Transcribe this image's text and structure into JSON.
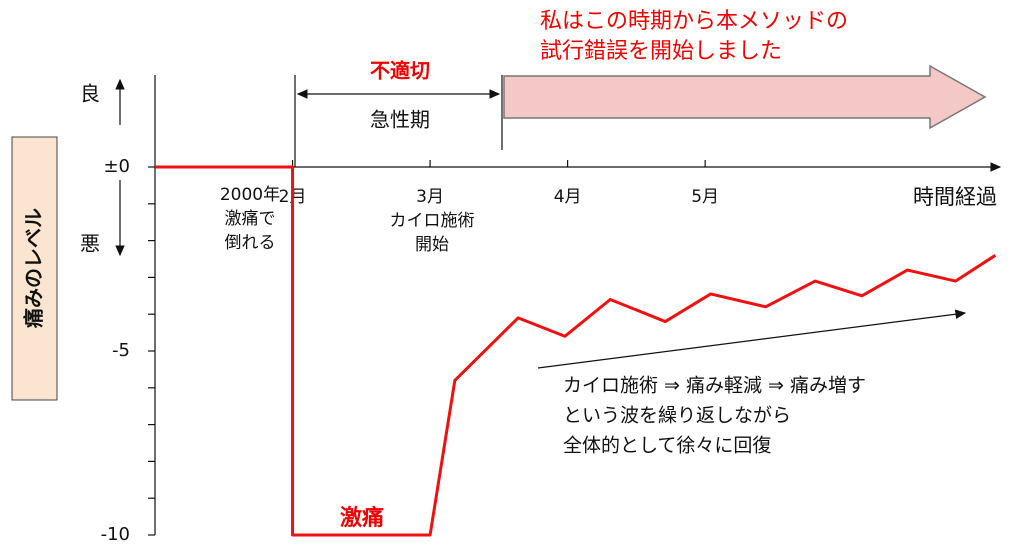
{
  "chart_data": {
    "type": "line",
    "x_label": "時間経過",
    "y_label": "痛みのレベル",
    "x": [
      1,
      2,
      2,
      3,
      3.18,
      3.64,
      3.98,
      4.31,
      4.71,
      5.04,
      5.44,
      5.8,
      6.14,
      6.47,
      6.82,
      7.11
    ],
    "series": [
      {
        "color": "#ee1111",
        "values": [
          0,
          0,
          -10,
          -10,
          -5.8,
          -4.1,
          -4.6,
          -3.6,
          -4.2,
          -3.45,
          -3.8,
          -3.1,
          -3.5,
          -2.8,
          -3.1,
          -2.4
        ]
      }
    ],
    "xlim": [
      1,
      7.18
    ],
    "ylim": [
      -10,
      2.5
    ],
    "xticks": [
      {
        "value": 2,
        "label": "2月"
      },
      {
        "value": 3,
        "label": "3月"
      },
      {
        "value": 4,
        "label": "4月"
      },
      {
        "value": 5,
        "label": "5月"
      }
    ],
    "yticks": [
      {
        "value": 0,
        "label": "±0"
      },
      -5,
      -10
    ],
    "yminor_ticks": [
      -1,
      -2,
      -3,
      -4,
      -6,
      -7,
      -8,
      -9
    ],
    "annotations": {
      "good": "良",
      "bad": "悪",
      "fall": [
        "2000年",
        "激痛で",
        "倒れる"
      ],
      "chiro_start": [
        "カイロ施術",
        "開始"
      ],
      "inappropriate": "不適切",
      "acute": "急性期",
      "trial": [
        "私はこの時期から本メソッドの",
        "試行錯誤を開始しました"
      ],
      "severe": "激痛",
      "trend": [
        "カイロ施術 ⇒ 痛み軽減 ⇒ 痛み増す",
        "という波を繰り返しながら",
        "全体的として徐々に回復"
      ]
    }
  }
}
